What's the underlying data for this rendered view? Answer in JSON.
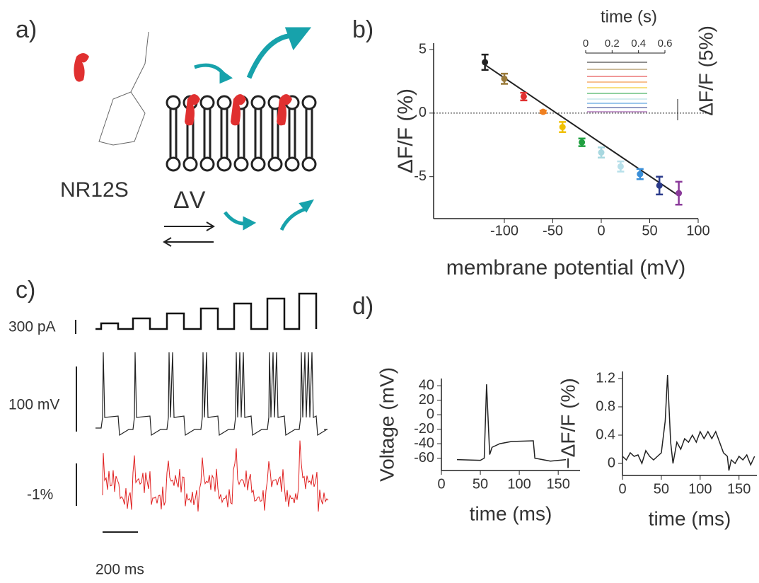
{
  "panel_labels": [
    "a)",
    "b)",
    "c)",
    "d)"
  ],
  "panel_a": {
    "molecule": "NR12S",
    "symbol": "ΔV"
  },
  "panel_c": {
    "current_scale": "300 pA",
    "voltage_scale": "100 mV",
    "fluorescence_scale": "-1%",
    "time_scale": "200 ms"
  },
  "chart_data": [
    {
      "type": "scatter",
      "xlabel": "membrane potential (mV)",
      "ylabel": "ΔF/F (%)",
      "xlim": [
        -173,
        100
      ],
      "ylim": [
        -8.3,
        5.5
      ],
      "xticks": [
        -100,
        -50,
        0,
        50,
        100
      ],
      "yticks": [
        5,
        0,
        -5
      ],
      "hline": 0,
      "series": [
        {
          "x": [
            -120,
            -100,
            -80,
            -60,
            -40,
            -20,
            0,
            20,
            40,
            60,
            80
          ],
          "values": [
            4.0,
            2.7,
            1.3,
            0.1,
            -1.1,
            -2.3,
            -3.1,
            -4.2,
            -4.8,
            -5.7,
            -6.3
          ],
          "errors": [
            0.6,
            0.4,
            0.3,
            0.1,
            0.4,
            0.3,
            0.4,
            0.4,
            0.4,
            0.7,
            0.9
          ],
          "colors": [
            "#222222",
            "#9a7a3a",
            "#e03030",
            "#f08020",
            "#f0c000",
            "#20a040",
            "#a8d8e0",
            "#b8e0ea",
            "#3a8fd8",
            "#2a3a8a",
            "#8a3a9a"
          ]
        }
      ],
      "fit": {
        "x": [
          -120,
          80
        ],
        "values": [
          3.8,
          -6.5
        ],
        "color": "#222222"
      }
    },
    {
      "type": "inset",
      "xlabel": "time (s)",
      "xlim": [
        0,
        0.6
      ],
      "xticks": [
        0,
        0.2,
        0.4,
        0.6
      ],
      "scale_bar_label": "ΔF/F (5%)"
    },
    {
      "type": "line",
      "xlabel": "time (ms)",
      "ylabel": "Voltage (mV)",
      "xlim": [
        0,
        178
      ],
      "ylim": [
        -77,
        50
      ],
      "xticks": [
        0,
        50,
        100,
        150
      ],
      "yticks": [
        40,
        20,
        0,
        -20,
        -40,
        -60
      ],
      "series": [
        {
          "color": "#222222",
          "x": [
            20,
            50,
            55,
            58,
            62,
            65,
            75,
            90,
            118,
            120,
            140,
            160
          ],
          "values": [
            -62,
            -63,
            -60,
            42,
            -55,
            -45,
            -40,
            -37,
            -36,
            -60,
            -64,
            -62
          ]
        }
      ]
    },
    {
      "type": "line",
      "xlabel": "time (ms)",
      "ylabel": "−ΔF/F (%)",
      "xlim": [
        0,
        173
      ],
      "ylim": [
        -0.17,
        1.3
      ],
      "xticks": [
        0,
        50,
        100,
        150
      ],
      "yticks": [
        0,
        0.4,
        0.8,
        1.2
      ],
      "series": [
        {
          "color": "#222222",
          "x": [
            0,
            5,
            10,
            15,
            20,
            25,
            30,
            35,
            40,
            45,
            50,
            55,
            58,
            62,
            65,
            70,
            75,
            80,
            85,
            90,
            95,
            100,
            105,
            110,
            115,
            120,
            125,
            130,
            135,
            137,
            140,
            145,
            150,
            155,
            160,
            165,
            170
          ],
          "values": [
            0.1,
            0.05,
            0.15,
            0.1,
            0.12,
            0.0,
            0.18,
            0.1,
            0.05,
            0.1,
            0.15,
            0.6,
            1.25,
            0.3,
            0.0,
            0.3,
            0.2,
            0.35,
            0.3,
            0.4,
            0.3,
            0.45,
            0.35,
            0.45,
            0.35,
            0.45,
            0.3,
            0.15,
            0.1,
            -0.1,
            0.05,
            0.0,
            0.1,
            0.05,
            0.12,
            -0.02,
            0.1
          ]
        }
      ]
    }
  ]
}
